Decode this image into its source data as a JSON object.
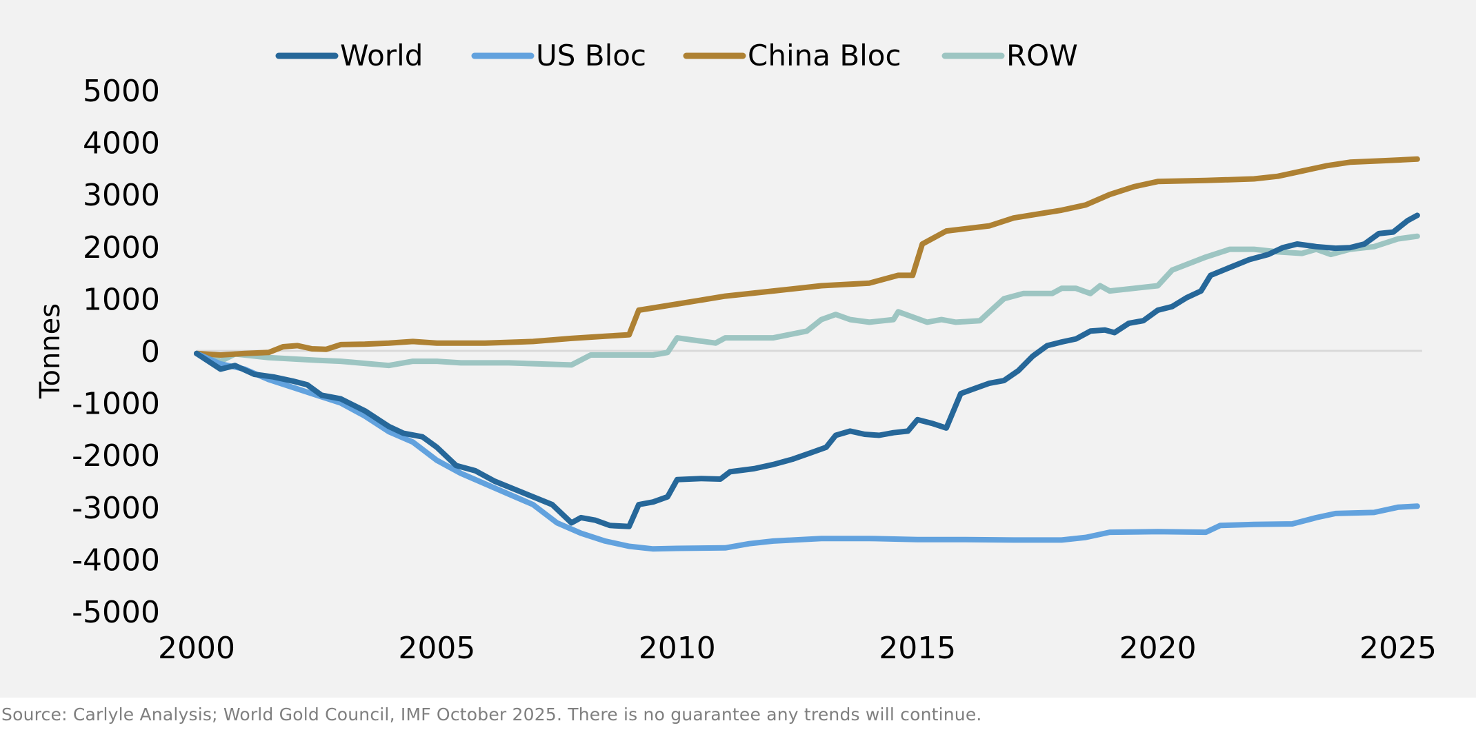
{
  "chart_data": {
    "type": "line",
    "title": "",
    "xlabel": "",
    "ylabel": "Tonnes",
    "xlim": [
      2000,
      2025.5
    ],
    "ylim": [
      -5000,
      5000
    ],
    "x_ticks": [
      2000,
      2005,
      2010,
      2015,
      2020,
      2025
    ],
    "x_tick_labels": [
      "2000",
      "2005",
      "2010",
      "2015",
      "2020",
      "2025"
    ],
    "y_ticks": [
      5000,
      4000,
      3000,
      2000,
      1000,
      0,
      -1000,
      -2000,
      -3000,
      -4000,
      -5000
    ],
    "y_tick_labels": [
      "5000",
      "4000",
      "3000",
      "2000",
      "1000",
      "0",
      "-1000",
      "-2000",
      "-3000",
      "-4000",
      "-5000"
    ],
    "grid": false,
    "zero_line": true,
    "legend_position": "top",
    "series": [
      {
        "name": "World",
        "color": "#266799",
        "points": [
          [
            2000,
            -50
          ],
          [
            2000.5,
            -350
          ],
          [
            2000.8,
            -280
          ],
          [
            2001.2,
            -450
          ],
          [
            2001.6,
            -500
          ],
          [
            2002,
            -580
          ],
          [
            2002.3,
            -650
          ],
          [
            2002.6,
            -850
          ],
          [
            2003,
            -920
          ],
          [
            2003.5,
            -1150
          ],
          [
            2004,
            -1450
          ],
          [
            2004.3,
            -1580
          ],
          [
            2004.7,
            -1650
          ],
          [
            2005,
            -1850
          ],
          [
            2005.4,
            -2200
          ],
          [
            2005.8,
            -2300
          ],
          [
            2006.2,
            -2500
          ],
          [
            2006.6,
            -2650
          ],
          [
            2007,
            -2800
          ],
          [
            2007.4,
            -2950
          ],
          [
            2007.8,
            -3300
          ],
          [
            2008,
            -3200
          ],
          [
            2008.3,
            -3250
          ],
          [
            2008.6,
            -3350
          ],
          [
            2009,
            -3370
          ],
          [
            2009.2,
            -2950
          ],
          [
            2009.5,
            -2900
          ],
          [
            2009.8,
            -2800
          ],
          [
            2010,
            -2470
          ],
          [
            2010.5,
            -2450
          ],
          [
            2010.9,
            -2460
          ],
          [
            2011.1,
            -2320
          ],
          [
            2011.6,
            -2260
          ],
          [
            2012,
            -2180
          ],
          [
            2012.4,
            -2080
          ],
          [
            2012.8,
            -1950
          ],
          [
            2013.1,
            -1850
          ],
          [
            2013.3,
            -1620
          ],
          [
            2013.6,
            -1540
          ],
          [
            2013.9,
            -1600
          ],
          [
            2014.2,
            -1620
          ],
          [
            2014.5,
            -1570
          ],
          [
            2014.8,
            -1540
          ],
          [
            2015,
            -1320
          ],
          [
            2015.3,
            -1390
          ],
          [
            2015.6,
            -1480
          ],
          [
            2015.9,
            -820
          ],
          [
            2016.2,
            -720
          ],
          [
            2016.5,
            -620
          ],
          [
            2016.8,
            -570
          ],
          [
            2017.1,
            -380
          ],
          [
            2017.4,
            -100
          ],
          [
            2017.7,
            100
          ],
          [
            2018,
            170
          ],
          [
            2018.3,
            230
          ],
          [
            2018.6,
            380
          ],
          [
            2018.9,
            400
          ],
          [
            2019.1,
            350
          ],
          [
            2019.4,
            530
          ],
          [
            2019.7,
            580
          ],
          [
            2020,
            780
          ],
          [
            2020.3,
            850
          ],
          [
            2020.6,
            1020
          ],
          [
            2020.9,
            1150
          ],
          [
            2021.1,
            1450
          ],
          [
            2021.5,
            1600
          ],
          [
            2021.9,
            1750
          ],
          [
            2022.3,
            1850
          ],
          [
            2022.6,
            1980
          ],
          [
            2022.9,
            2050
          ],
          [
            2023.3,
            2000
          ],
          [
            2023.7,
            1970
          ],
          [
            2024,
            1980
          ],
          [
            2024.3,
            2050
          ],
          [
            2024.6,
            2250
          ],
          [
            2024.9,
            2280
          ],
          [
            2025.2,
            2500
          ],
          [
            2025.4,
            2600
          ]
        ]
      },
      {
        "name": "US Bloc",
        "color": "#62A2DE",
        "points": [
          [
            2000,
            -50
          ],
          [
            2000.5,
            -250
          ],
          [
            2001,
            -350
          ],
          [
            2001.5,
            -550
          ],
          [
            2002,
            -700
          ],
          [
            2002.5,
            -850
          ],
          [
            2003,
            -1000
          ],
          [
            2003.5,
            -1250
          ],
          [
            2004,
            -1550
          ],
          [
            2004.5,
            -1750
          ],
          [
            2005,
            -2100
          ],
          [
            2005.5,
            -2350
          ],
          [
            2006,
            -2550
          ],
          [
            2006.5,
            -2750
          ],
          [
            2007,
            -2950
          ],
          [
            2007.5,
            -3300
          ],
          [
            2008,
            -3500
          ],
          [
            2008.5,
            -3650
          ],
          [
            2009,
            -3750
          ],
          [
            2009.5,
            -3800
          ],
          [
            2010,
            -3790
          ],
          [
            2011,
            -3780
          ],
          [
            2011.5,
            -3700
          ],
          [
            2012,
            -3650
          ],
          [
            2013,
            -3600
          ],
          [
            2014,
            -3600
          ],
          [
            2015,
            -3620
          ],
          [
            2016,
            -3620
          ],
          [
            2017,
            -3630
          ],
          [
            2018,
            -3630
          ],
          [
            2018.5,
            -3580
          ],
          [
            2019,
            -3480
          ],
          [
            2020,
            -3470
          ],
          [
            2021,
            -3480
          ],
          [
            2021.3,
            -3350
          ],
          [
            2022,
            -3330
          ],
          [
            2022.8,
            -3320
          ],
          [
            2023.3,
            -3200
          ],
          [
            2023.7,
            -3120
          ],
          [
            2024.5,
            -3100
          ],
          [
            2025,
            -3000
          ],
          [
            2025.4,
            -2980
          ]
        ]
      },
      {
        "name": "China Bloc",
        "color": "#AE8133",
        "points": [
          [
            2000,
            -50
          ],
          [
            2000.5,
            -80
          ],
          [
            2001,
            -50
          ],
          [
            2001.5,
            -30
          ],
          [
            2001.8,
            80
          ],
          [
            2002.1,
            100
          ],
          [
            2002.4,
            40
          ],
          [
            2002.7,
            30
          ],
          [
            2003,
            120
          ],
          [
            2003.5,
            130
          ],
          [
            2004,
            150
          ],
          [
            2004.5,
            180
          ],
          [
            2005,
            150
          ],
          [
            2006,
            150
          ],
          [
            2007,
            180
          ],
          [
            2007.8,
            240
          ],
          [
            2008.5,
            280
          ],
          [
            2009,
            310
          ],
          [
            2009.2,
            780
          ],
          [
            2010,
            900
          ],
          [
            2011,
            1050
          ],
          [
            2012,
            1150
          ],
          [
            2013,
            1250
          ],
          [
            2014,
            1300
          ],
          [
            2014.6,
            1450
          ],
          [
            2014.9,
            1450
          ],
          [
            2015.1,
            2050
          ],
          [
            2015.6,
            2300
          ],
          [
            2016.5,
            2400
          ],
          [
            2017,
            2550
          ],
          [
            2018,
            2700
          ],
          [
            2018.5,
            2800
          ],
          [
            2019,
            3000
          ],
          [
            2019.5,
            3150
          ],
          [
            2020,
            3250
          ],
          [
            2021,
            3270
          ],
          [
            2022,
            3300
          ],
          [
            2022.5,
            3350
          ],
          [
            2023,
            3450
          ],
          [
            2023.5,
            3550
          ],
          [
            2024,
            3620
          ],
          [
            2024.7,
            3650
          ],
          [
            2025.4,
            3680
          ]
        ]
      },
      {
        "name": "ROW",
        "color": "#9DC5C2",
        "points": [
          [
            2000,
            -50
          ],
          [
            2000.3,
            -100
          ],
          [
            2000.5,
            -200
          ],
          [
            2000.8,
            -60
          ],
          [
            2001.5,
            -130
          ],
          [
            2002.5,
            -180
          ],
          [
            2003,
            -200
          ],
          [
            2004,
            -280
          ],
          [
            2004.5,
            -200
          ],
          [
            2005,
            -200
          ],
          [
            2005.5,
            -230
          ],
          [
            2006.5,
            -230
          ],
          [
            2007.8,
            -270
          ],
          [
            2008.2,
            -80
          ],
          [
            2009.5,
            -80
          ],
          [
            2009.8,
            -30
          ],
          [
            2010,
            250
          ],
          [
            2010.8,
            150
          ],
          [
            2011,
            250
          ],
          [
            2012,
            250
          ],
          [
            2012.7,
            380
          ],
          [
            2013,
            600
          ],
          [
            2013.3,
            700
          ],
          [
            2013.6,
            600
          ],
          [
            2014,
            550
          ],
          [
            2014.5,
            600
          ],
          [
            2014.6,
            750
          ],
          [
            2015.2,
            550
          ],
          [
            2015.5,
            600
          ],
          [
            2015.8,
            550
          ],
          [
            2016.3,
            580
          ],
          [
            2016.5,
            750
          ],
          [
            2016.8,
            1000
          ],
          [
            2017.2,
            1100
          ],
          [
            2017.8,
            1100
          ],
          [
            2018,
            1200
          ],
          [
            2018.3,
            1200
          ],
          [
            2018.6,
            1100
          ],
          [
            2018.8,
            1250
          ],
          [
            2019,
            1150
          ],
          [
            2019.5,
            1200
          ],
          [
            2020,
            1250
          ],
          [
            2020.3,
            1550
          ],
          [
            2021,
            1800
          ],
          [
            2021.5,
            1950
          ],
          [
            2022,
            1950
          ],
          [
            2022.5,
            1900
          ],
          [
            2023,
            1870
          ],
          [
            2023.3,
            1950
          ],
          [
            2023.6,
            1850
          ],
          [
            2024,
            1950
          ],
          [
            2024.5,
            2000
          ],
          [
            2025,
            2150
          ],
          [
            2025.4,
            2200
          ]
        ]
      }
    ]
  },
  "source_note": "Source: Carlyle Analysis; World Gold Council, IMF October 2025. There is no guarantee any trends will continue."
}
